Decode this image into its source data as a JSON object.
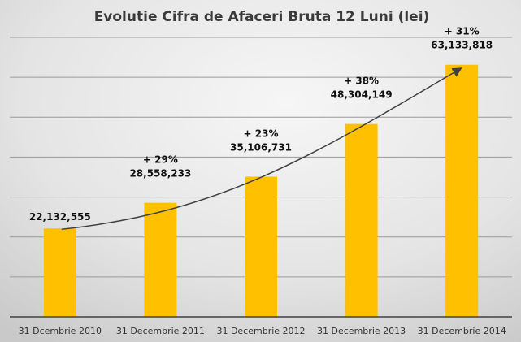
{
  "chart_data": {
    "type": "bar",
    "title": "Evolutie Cifra de Afaceri Bruta 12 Luni (lei)",
    "xlabel": "",
    "ylabel": "",
    "categories": [
      "31 Dcembrie 2010",
      "31 Decembrie 2011",
      "31 Decembrie 2012",
      "31 Decembrie 2013",
      "31 Decembrie 2014"
    ],
    "values": [
      22132555,
      28558233,
      35106731,
      48304149,
      63133818
    ],
    "value_labels": [
      "22,132,555",
      "28,558,233",
      "35,106,731",
      "48,304,149",
      "63,133,818"
    ],
    "growth_labels": [
      "",
      "+ 29%",
      "+ 23%",
      "+ 38%",
      "+ 31%"
    ],
    "ylim": [
      0,
      70000000
    ],
    "ytick_step": 10000000,
    "grid": true,
    "trend_arrow": true,
    "colors": {
      "bar": "#FFC000",
      "grid": "#9a9a9a",
      "axis": "#404040",
      "arrow": "#404040"
    }
  }
}
